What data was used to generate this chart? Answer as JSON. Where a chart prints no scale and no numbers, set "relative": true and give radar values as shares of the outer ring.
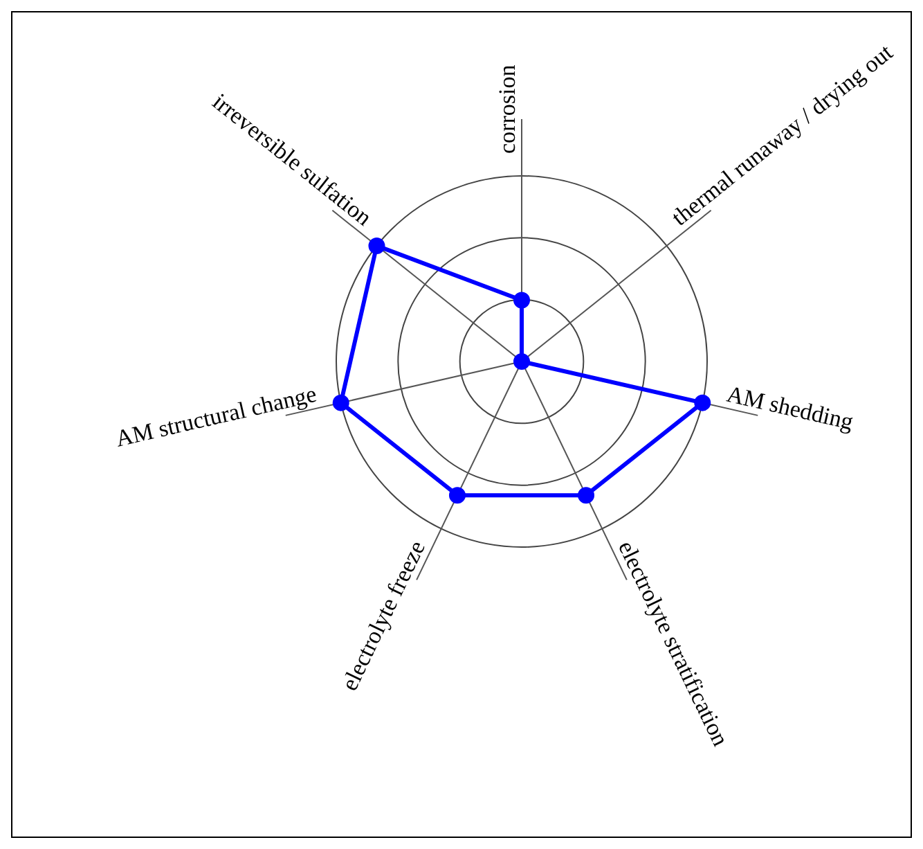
{
  "chart_data": {
    "type": "radar",
    "categories": [
      "corrosion",
      "thermal runaway / drying out",
      "AM shedding",
      "electrolyte stratification",
      "electrolyte freeze",
      "AM structural change",
      "irreversible sulfation"
    ],
    "series": [
      {
        "color": "#0000ff",
        "values": [
          0.33,
          0,
          1,
          0.8,
          0.8,
          1,
          1
        ]
      }
    ],
    "relative": true,
    "grid": true,
    "legend": false,
    "marker": "circle",
    "line_style": "solid"
  }
}
